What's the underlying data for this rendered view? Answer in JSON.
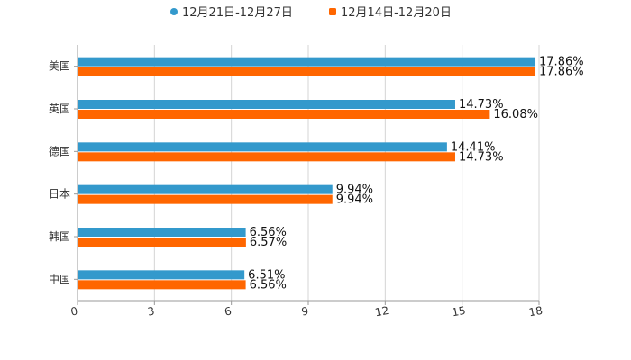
{
  "chart_data": {
    "type": "bar",
    "orientation": "horizontal",
    "categories": [
      "美国",
      "英国",
      "德国",
      "日本",
      "韩国",
      "中国"
    ],
    "series": [
      {
        "name": "12月21日-12月27日",
        "color": "#3399cc",
        "values": [
          17.86,
          14.73,
          14.41,
          9.94,
          6.56,
          6.51
        ],
        "labels": [
          "17.86%",
          "14.73%",
          "14.41%",
          "9.94%",
          "6.56%",
          "6.51%"
        ]
      },
      {
        "name": "12月14日-12月20日",
        "color": "#ff6600",
        "values": [
          17.86,
          16.08,
          14.73,
          9.94,
          6.57,
          6.56
        ],
        "labels": [
          "17.86%",
          "16.08%",
          "14.73%",
          "9.94%",
          "6.57%",
          "6.56%"
        ]
      }
    ],
    "xticks": [
      "0",
      "3",
      "6",
      "9",
      "12",
      "15",
      "18"
    ],
    "xlim": [
      0,
      18
    ],
    "legend_position": "top-center",
    "grid": true
  }
}
